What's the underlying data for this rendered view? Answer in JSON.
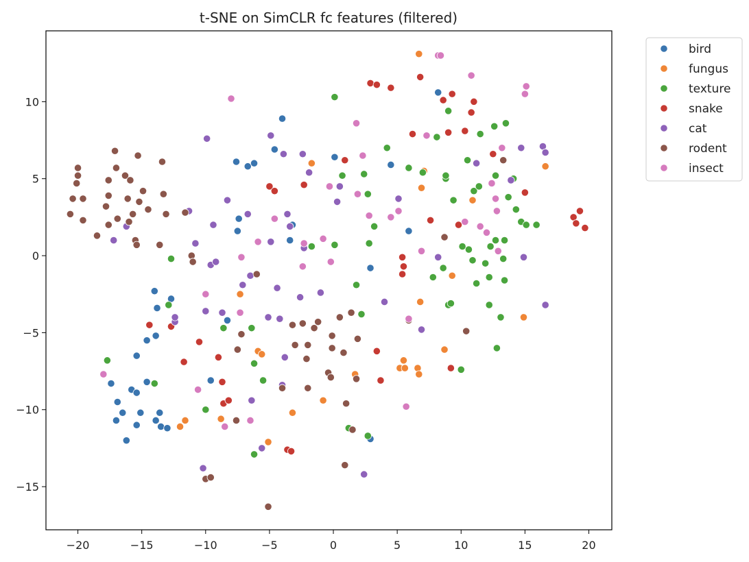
{
  "chart_data": {
    "type": "scatter",
    "title": "t-SNE on SimCLR fc features (filtered)",
    "xlabel": "",
    "ylabel": "",
    "xlim": [
      -22.5,
      21.8
    ],
    "ylim": [
      -17.8,
      14.6
    ],
    "xticks": [
      -20,
      -15,
      -10,
      -5,
      0,
      5,
      10,
      15,
      20
    ],
    "yticks": [
      -15,
      -10,
      -5,
      0,
      5,
      10
    ],
    "grid": false,
    "legend_position": "outside-top-right",
    "series": [
      {
        "name": "bird",
        "color": "#3a75af",
        "points": [
          [
            -17.4,
            -8.3
          ],
          [
            -17.0,
            -10.7
          ],
          [
            -16.9,
            -9.5
          ],
          [
            -16.5,
            -10.2
          ],
          [
            -16.2,
            -12.0
          ],
          [
            -15.8,
            -8.7
          ],
          [
            -15.4,
            -6.5
          ],
          [
            -15.4,
            -8.9
          ],
          [
            -15.4,
            -11.0
          ],
          [
            -15.1,
            -10.2
          ],
          [
            -14.6,
            -5.5
          ],
          [
            -14.6,
            -8.2
          ],
          [
            -14.0,
            -2.3
          ],
          [
            -13.9,
            -10.7
          ],
          [
            -13.9,
            -5.2
          ],
          [
            -13.8,
            -3.4
          ],
          [
            -13.6,
            -10.2
          ],
          [
            -13.5,
            -11.1
          ],
          [
            -13.0,
            -11.2
          ],
          [
            -12.7,
            -2.8
          ],
          [
            -9.6,
            -8.1
          ],
          [
            -8.3,
            -4.2
          ],
          [
            -7.6,
            6.1
          ],
          [
            -7.5,
            1.6
          ],
          [
            -7.4,
            2.4
          ],
          [
            -6.7,
            5.8
          ],
          [
            -6.2,
            6.0
          ],
          [
            -4.6,
            6.9
          ],
          [
            -4.0,
            8.9
          ],
          [
            -3.4,
            1.0
          ],
          [
            -3.2,
            2.0
          ],
          [
            0.1,
            6.4
          ],
          [
            2.9,
            -0.8
          ],
          [
            2.9,
            -11.9
          ],
          [
            4.5,
            5.9
          ],
          [
            5.9,
            1.6
          ],
          [
            8.2,
            10.6
          ]
        ]
      },
      {
        "name": "fungus",
        "color": "#ef8636",
        "points": [
          [
            -12.0,
            -11.1
          ],
          [
            -11.6,
            -10.7
          ],
          [
            -8.8,
            -10.6
          ],
          [
            -7.3,
            -2.5
          ],
          [
            -5.9,
            -6.2
          ],
          [
            -5.6,
            -6.4
          ],
          [
            -5.1,
            -12.1
          ],
          [
            -3.2,
            -10.2
          ],
          [
            -1.7,
            6.0
          ],
          [
            -0.8,
            -9.4
          ],
          [
            1.7,
            -7.7
          ],
          [
            5.2,
            -7.3
          ],
          [
            5.5,
            -6.8
          ],
          [
            5.6,
            -7.3
          ],
          [
            6.6,
            -7.3
          ],
          [
            6.7,
            -7.7
          ],
          [
            6.7,
            13.1
          ],
          [
            6.8,
            -3.0
          ],
          [
            6.9,
            4.4
          ],
          [
            7.1,
            5.5
          ],
          [
            8.7,
            -6.1
          ],
          [
            9.3,
            -1.3
          ],
          [
            10.9,
            3.6
          ],
          [
            14.9,
            -4.0
          ],
          [
            16.6,
            5.8
          ]
        ]
      },
      {
        "name": "texture",
        "color": "#4aa53d",
        "points": [
          [
            -17.7,
            -6.8
          ],
          [
            -14.0,
            -8.3
          ],
          [
            -12.9,
            -3.2
          ],
          [
            -12.7,
            -0.2
          ],
          [
            -10.0,
            -10.0
          ],
          [
            -8.6,
            -4.7
          ],
          [
            -6.4,
            -4.7
          ],
          [
            -6.2,
            -12.9
          ],
          [
            -6.2,
            -7.0
          ],
          [
            -5.5,
            -8.1
          ],
          [
            -1.7,
            0.6
          ],
          [
            0.1,
            10.3
          ],
          [
            0.1,
            0.7
          ],
          [
            0.7,
            5.2
          ],
          [
            1.2,
            -11.2
          ],
          [
            1.8,
            -1.9
          ],
          [
            2.2,
            -3.8
          ],
          [
            2.4,
            5.3
          ],
          [
            2.7,
            4.0
          ],
          [
            2.8,
            0.8
          ],
          [
            2.7,
            -11.7
          ],
          [
            4.2,
            7.0
          ],
          [
            5.9,
            5.7
          ],
          [
            7.0,
            5.4
          ],
          [
            7.8,
            -1.4
          ],
          [
            8.1,
            7.7
          ],
          [
            8.6,
            -0.8
          ],
          [
            8.8,
            5.0
          ],
          [
            8.8,
            5.2
          ],
          [
            9.0,
            9.4
          ],
          [
            9.0,
            -3.2
          ],
          [
            9.2,
            -3.1
          ],
          [
            9.4,
            3.6
          ],
          [
            10.1,
            0.6
          ],
          [
            10.5,
            6.2
          ],
          [
            10.6,
            0.4
          ],
          [
            10.9,
            -0.3
          ],
          [
            11.0,
            4.2
          ],
          [
            11.2,
            -1.8
          ],
          [
            11.4,
            4.5
          ],
          [
            11.5,
            7.9
          ],
          [
            11.9,
            -0.5
          ],
          [
            12.2,
            -1.4
          ],
          [
            12.2,
            -3.2
          ],
          [
            12.3,
            0.6
          ],
          [
            12.6,
            8.4
          ],
          [
            12.7,
            1.0
          ],
          [
            12.7,
            5.2
          ],
          [
            12.8,
            -6.0
          ],
          [
            13.1,
            -4.0
          ],
          [
            13.3,
            -0.2
          ],
          [
            13.4,
            -1.6
          ],
          [
            13.4,
            1.0
          ],
          [
            13.5,
            8.6
          ],
          [
            13.7,
            3.8
          ],
          [
            14.1,
            5.0
          ],
          [
            14.3,
            3.0
          ],
          [
            14.7,
            2.2
          ],
          [
            15.1,
            2.0
          ],
          [
            15.9,
            2.0
          ],
          [
            10.0,
            -7.4
          ],
          [
            3.2,
            1.9
          ]
        ]
      },
      {
        "name": "snake",
        "color": "#c63a33",
        "points": [
          [
            -14.4,
            -4.5
          ],
          [
            -12.7,
            -4.6
          ],
          [
            -11.7,
            -6.9
          ],
          [
            -10.5,
            -5.6
          ],
          [
            -9.0,
            -6.6
          ],
          [
            -8.7,
            -8.2
          ],
          [
            -8.6,
            -9.6
          ],
          [
            -8.2,
            -9.4
          ],
          [
            -5.0,
            4.5
          ],
          [
            -4.6,
            4.2
          ],
          [
            -3.6,
            -12.6
          ],
          [
            -3.3,
            -12.7
          ],
          [
            -2.3,
            4.6
          ],
          [
            0.9,
            6.2
          ],
          [
            2.9,
            11.2
          ],
          [
            3.4,
            11.1
          ],
          [
            3.4,
            -6.2
          ],
          [
            3.7,
            -8.1
          ],
          [
            4.5,
            10.9
          ],
          [
            5.4,
            -0.1
          ],
          [
            5.4,
            -1.2
          ],
          [
            5.5,
            -0.7
          ],
          [
            6.2,
            7.9
          ],
          [
            6.8,
            11.6
          ],
          [
            7.6,
            2.3
          ],
          [
            8.6,
            10.1
          ],
          [
            9.0,
            8.0
          ],
          [
            9.2,
            -7.3
          ],
          [
            9.3,
            10.5
          ],
          [
            9.8,
            2.0
          ],
          [
            10.3,
            8.1
          ],
          [
            10.8,
            9.3
          ],
          [
            11.0,
            10.0
          ],
          [
            12.5,
            6.6
          ],
          [
            15.0,
            4.1
          ],
          [
            18.8,
            2.5
          ],
          [
            19.0,
            2.1
          ],
          [
            19.3,
            2.9
          ],
          [
            19.7,
            1.8
          ]
        ]
      },
      {
        "name": "cat",
        "color": "#8e62b9",
        "points": [
          [
            -17.2,
            1.0
          ],
          [
            -16.2,
            1.9
          ],
          [
            -12.4,
            -4.3
          ],
          [
            -12.4,
            -4.0
          ],
          [
            -11.3,
            2.9
          ],
          [
            -10.8,
            0.8
          ],
          [
            -10.2,
            -13.8
          ],
          [
            -10.0,
            -3.6
          ],
          [
            -9.9,
            7.6
          ],
          [
            -9.6,
            -0.6
          ],
          [
            -9.4,
            2.0
          ],
          [
            -9.2,
            -0.4
          ],
          [
            -8.7,
            -3.7
          ],
          [
            -8.3,
            3.6
          ],
          [
            -7.1,
            -1.9
          ],
          [
            -6.7,
            2.7
          ],
          [
            -6.5,
            -1.3
          ],
          [
            -6.4,
            -9.4
          ],
          [
            -5.6,
            -12.5
          ],
          [
            -5.1,
            -4.0
          ],
          [
            -4.9,
            7.8
          ],
          [
            -4.9,
            0.9
          ],
          [
            -4.4,
            -2.1
          ],
          [
            -4.2,
            -4.1
          ],
          [
            -4.0,
            -8.4
          ],
          [
            -3.9,
            6.6
          ],
          [
            -3.8,
            -6.6
          ],
          [
            -3.6,
            2.7
          ],
          [
            -3.4,
            1.9
          ],
          [
            -2.6,
            -2.7
          ],
          [
            -2.4,
            6.6
          ],
          [
            -2.3,
            0.5
          ],
          [
            -1.9,
            5.4
          ],
          [
            -1.0,
            -2.4
          ],
          [
            0.3,
            3.5
          ],
          [
            0.5,
            4.5
          ],
          [
            2.4,
            -14.2
          ],
          [
            4.0,
            -3.0
          ],
          [
            5.1,
            3.7
          ],
          [
            6.9,
            -4.8
          ],
          [
            8.2,
            -0.1
          ],
          [
            11.2,
            6.0
          ],
          [
            13.9,
            4.9
          ],
          [
            14.7,
            7.0
          ],
          [
            14.9,
            -0.1
          ],
          [
            16.4,
            7.1
          ],
          [
            16.6,
            6.7
          ],
          [
            16.6,
            -3.2
          ]
        ]
      },
      {
        "name": "rodent",
        "color": "#8b564b",
        "points": [
          [
            -20.6,
            2.7
          ],
          [
            -20.4,
            3.7
          ],
          [
            -20.1,
            4.7
          ],
          [
            -20.0,
            5.7
          ],
          [
            -20.0,
            5.2
          ],
          [
            -19.6,
            3.7
          ],
          [
            -19.6,
            2.3
          ],
          [
            -18.5,
            1.3
          ],
          [
            -17.8,
            3.2
          ],
          [
            -17.6,
            3.9
          ],
          [
            -17.6,
            2.0
          ],
          [
            -17.6,
            4.9
          ],
          [
            -17.1,
            6.8
          ],
          [
            -17.0,
            5.7
          ],
          [
            -16.9,
            2.4
          ],
          [
            -16.3,
            5.2
          ],
          [
            -16.1,
            3.7
          ],
          [
            -16.0,
            2.2
          ],
          [
            -15.9,
            4.9
          ],
          [
            -15.7,
            2.7
          ],
          [
            -15.5,
            1.0
          ],
          [
            -15.4,
            0.7
          ],
          [
            -15.3,
            6.5
          ],
          [
            -15.2,
            3.5
          ],
          [
            -14.9,
            4.2
          ],
          [
            -14.5,
            3.0
          ],
          [
            -13.6,
            0.7
          ],
          [
            -13.4,
            6.1
          ],
          [
            -13.3,
            4.0
          ],
          [
            -13.1,
            2.7
          ],
          [
            -11.6,
            2.8
          ],
          [
            -11.1,
            0.0
          ],
          [
            -11.0,
            -0.4
          ],
          [
            -10.0,
            -14.5
          ],
          [
            -9.6,
            -14.4
          ],
          [
            -7.6,
            -10.7
          ],
          [
            -7.5,
            -6.1
          ],
          [
            -7.2,
            -5.1
          ],
          [
            -6.0,
            -1.2
          ],
          [
            -5.1,
            -16.3
          ],
          [
            -4.0,
            -8.6
          ],
          [
            -3.2,
            -4.5
          ],
          [
            -3.0,
            -5.8
          ],
          [
            -2.4,
            -4.4
          ],
          [
            -2.1,
            -6.7
          ],
          [
            -2.0,
            -5.8
          ],
          [
            -2.0,
            -8.6
          ],
          [
            -1.5,
            -4.7
          ],
          [
            -1.2,
            -4.3
          ],
          [
            -0.4,
            -7.6
          ],
          [
            -0.2,
            -7.9
          ],
          [
            -0.1,
            -5.2
          ],
          [
            -0.1,
            -6.0
          ],
          [
            0.5,
            -4.0
          ],
          [
            0.8,
            -6.3
          ],
          [
            0.9,
            -13.6
          ],
          [
            1.0,
            -9.6
          ],
          [
            1.4,
            -3.7
          ],
          [
            1.5,
            -11.3
          ],
          [
            1.8,
            -8.0
          ],
          [
            1.9,
            -5.4
          ],
          [
            5.9,
            -4.2
          ],
          [
            8.7,
            1.2
          ],
          [
            10.4,
            -4.9
          ],
          [
            13.3,
            6.2
          ]
        ]
      },
      {
        "name": "insect",
        "color": "#d67bbe",
        "points": [
          [
            -18.0,
            -7.7
          ],
          [
            -10.6,
            -8.7
          ],
          [
            -10.0,
            -2.5
          ],
          [
            -8.5,
            -11.1
          ],
          [
            -8.0,
            10.2
          ],
          [
            -7.2,
            -0.1
          ],
          [
            -7.3,
            -3.7
          ],
          [
            -6.5,
            -10.7
          ],
          [
            -5.9,
            0.9
          ],
          [
            -4.6,
            2.4
          ],
          [
            -2.3,
            0.8
          ],
          [
            -2.4,
            -0.7
          ],
          [
            -0.8,
            1.1
          ],
          [
            -0.3,
            4.5
          ],
          [
            -0.2,
            -0.4
          ],
          [
            1.8,
            8.6
          ],
          [
            1.9,
            4.0
          ],
          [
            2.3,
            6.5
          ],
          [
            2.8,
            2.6
          ],
          [
            4.5,
            2.5
          ],
          [
            5.1,
            2.9
          ],
          [
            5.7,
            -9.8
          ],
          [
            5.9,
            -4.1
          ],
          [
            6.9,
            0.3
          ],
          [
            7.3,
            7.8
          ],
          [
            8.2,
            13.0
          ],
          [
            8.4,
            13.0
          ],
          [
            10.3,
            2.2
          ],
          [
            10.8,
            11.7
          ],
          [
            11.5,
            1.9
          ],
          [
            12.0,
            1.5
          ],
          [
            12.4,
            4.7
          ],
          [
            12.7,
            3.7
          ],
          [
            12.8,
            2.9
          ],
          [
            12.9,
            0.3
          ],
          [
            13.2,
            7.0
          ],
          [
            15.0,
            10.5
          ],
          [
            15.1,
            11.0
          ]
        ]
      }
    ]
  }
}
